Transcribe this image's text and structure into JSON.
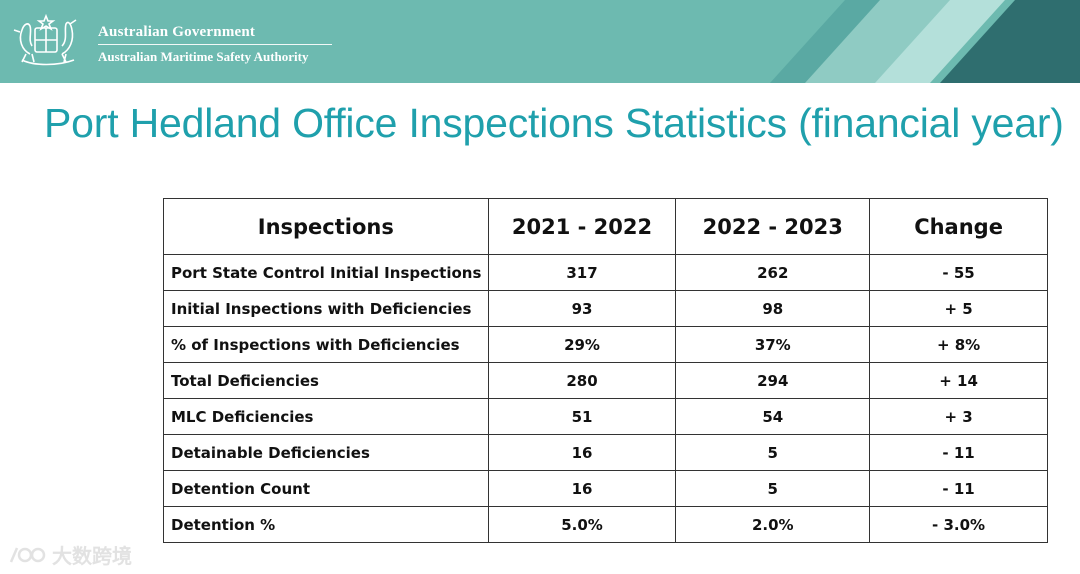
{
  "header": {
    "government": "Australian Government",
    "agency": "Australian Maritime Safety Authority",
    "colors": {
      "banner": "#6dbab0",
      "stripe_light": "#9fd3cb",
      "stripe_dark": "#2f6e6f"
    }
  },
  "slide": {
    "title": "Port Hedland Office Inspections Statistics (financial year)",
    "title_color": "#1fa0ac"
  },
  "table": {
    "headers": [
      "Inspections",
      "2021 - 2022",
      "2022 - 2023",
      "Change"
    ],
    "rows": [
      [
        "Port State Control Initial Inspections",
        "317",
        "262",
        "- 55"
      ],
      [
        "Initial Inspections with Deficiencies",
        "93",
        "98",
        "+ 5"
      ],
      [
        "% of Inspections with Deficiencies",
        "29%",
        "37%",
        "+ 8%"
      ],
      [
        "Total Deficiencies",
        "280",
        "294",
        "+ 14"
      ],
      [
        "MLC Deficiencies",
        "51",
        "54",
        "+ 3"
      ],
      [
        "Detainable Deficiencies",
        "16",
        "5",
        "- 11"
      ],
      [
        "Detention Count",
        "16",
        "5",
        "- 11"
      ],
      [
        "Detention %",
        "5.0%",
        "2.0%",
        "- 3.0%"
      ]
    ]
  },
  "watermark": {
    "text": "大数跨境",
    "icon": "logo-icon"
  }
}
